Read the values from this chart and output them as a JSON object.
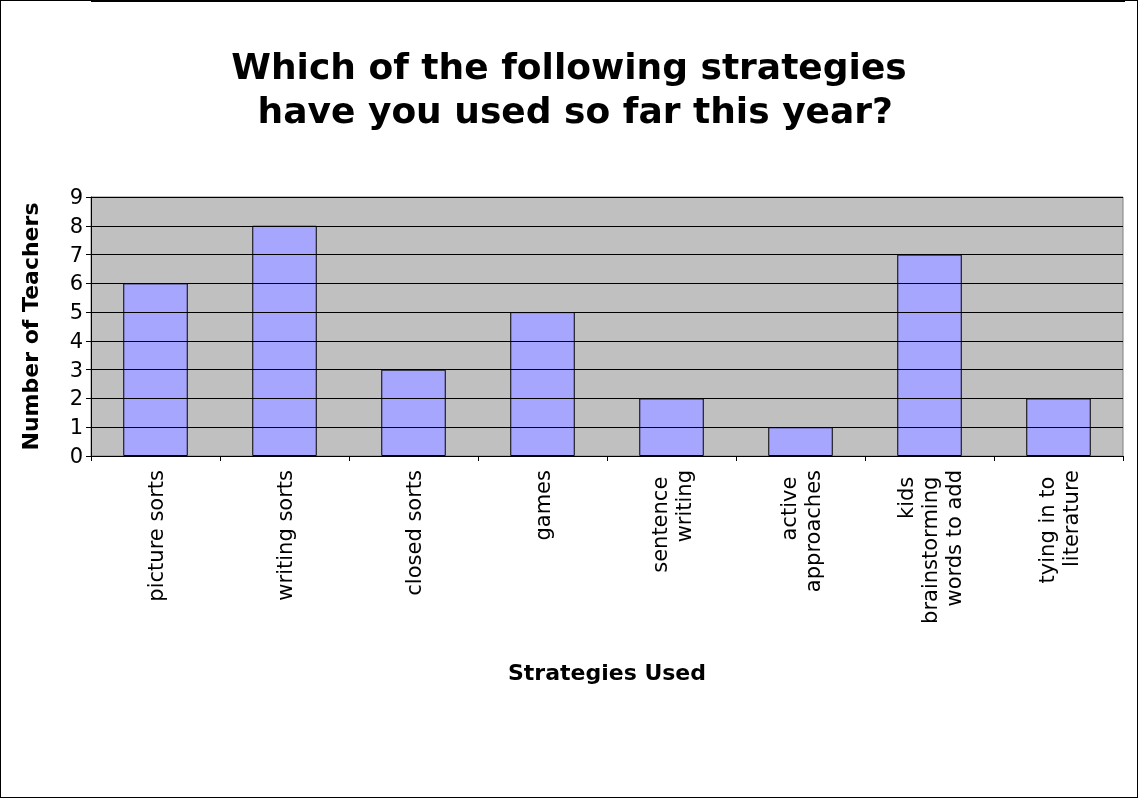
{
  "chart_data": {
    "type": "bar",
    "title": "Which of the following strategies have you used so far this year?",
    "xlabel": "Strategies Used",
    "ylabel": "Number of Teachers",
    "categories": [
      "picture sorts",
      "writing sorts",
      "closed sorts",
      "games",
      "sentence writing",
      "active approaches",
      "kids brainstorming words to add",
      "tying in to literature"
    ],
    "values": [
      6,
      8,
      3,
      5,
      2,
      1,
      7,
      2
    ],
    "color": "#a6a6ff",
    "ylim": [
      0,
      9
    ],
    "yticks": [
      0,
      1,
      2,
      3,
      4,
      5,
      6,
      7,
      8,
      9
    ],
    "grid": "y"
  }
}
